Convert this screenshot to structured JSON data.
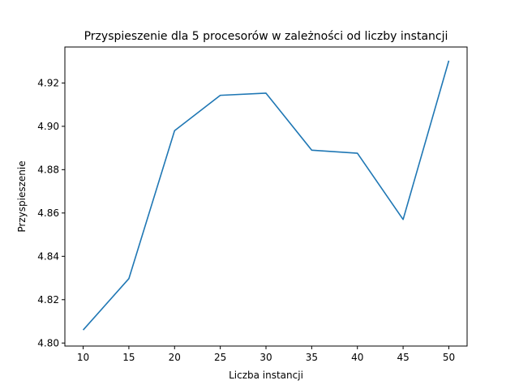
{
  "chart_data": {
    "type": "line",
    "title": "Przyspieszenie dla 5 procesorów w zależności od liczby instancji",
    "xlabel": "Liczba instancji",
    "ylabel": "Przyspieszenie",
    "x": [
      10,
      15,
      20,
      25,
      30,
      35,
      40,
      45,
      50
    ],
    "series": [
      {
        "values": [
          4.806,
          4.8297,
          4.898,
          4.9143,
          4.9153,
          4.889,
          4.8876,
          4.857,
          4.9303
        ]
      }
    ],
    "xlim": [
      8,
      52
    ],
    "ylim": [
      4.7986,
      4.9366
    ],
    "xticks": [
      10,
      15,
      20,
      25,
      30,
      35,
      40,
      45,
      50
    ],
    "yticks": [
      4.8,
      4.82,
      4.84,
      4.86,
      4.88,
      4.9,
      4.92
    ],
    "ytick_labels": [
      "4.80",
      "4.82",
      "4.84",
      "4.86",
      "4.88",
      "4.90",
      "4.92"
    ],
    "grid": false,
    "line_color": "#1f77b4"
  }
}
